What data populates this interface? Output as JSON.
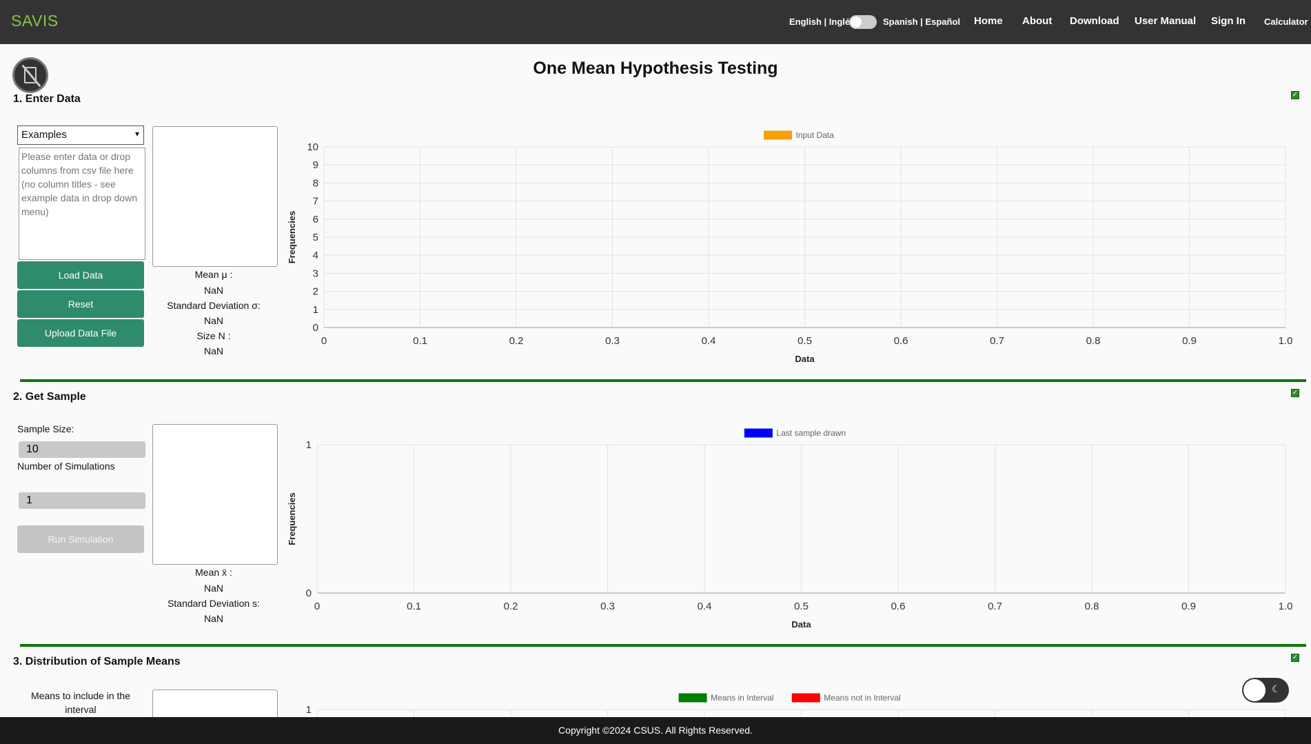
{
  "nav": {
    "brand": "SAVIS",
    "lang_en": "English | Inglés",
    "lang_es": "Spanish | Español",
    "links": [
      "Home",
      "About",
      "Download",
      "User Manual",
      "Sign In",
      "Calculator"
    ]
  },
  "page_title": "One Mean Hypothesis Testing",
  "section1": {
    "title": "1. Enter Data",
    "select_value": "Examples",
    "textarea_placeholder": "Please enter data or drop columns from csv file here (no column titles - see example data in drop down menu)",
    "buttons": [
      "Load Data",
      "Reset",
      "Upload Data File"
    ],
    "stats": {
      "mean_label": "Mean μ :",
      "mean_val": "NaN",
      "sd_label": "Standard Deviation σ:",
      "sd_val": "NaN",
      "size_label": "Size N :",
      "size_val": "NaN"
    }
  },
  "section2": {
    "title": "2. Get Sample",
    "sample_size_label": "Sample Size:",
    "sample_size_value": "10",
    "num_sims_label": "Number of Simulations",
    "num_sims_value": "1",
    "run_button": "Run Simulation",
    "stats": {
      "mean_label": "Mean x̄ :",
      "mean_val": "NaN",
      "sd_label": "Standard Deviation s:",
      "sd_val": "NaN"
    }
  },
  "section3": {
    "title": "3. Distribution of Sample Means",
    "means_label": "Means to include in the interval"
  },
  "footer": "Copyright ©2024 CSUS. All Rights Reserved.",
  "colors": {
    "nav_bg": "#333333",
    "brand": "#8ac34a",
    "button": "#2e8b6c",
    "divider": "#0d7a0d",
    "input_data": "#f5a10a",
    "last_sample": "#0000ff",
    "in_interval": "#008000",
    "not_in_interval": "#ff0000"
  },
  "chart_data": [
    {
      "type": "bar",
      "legend": [
        {
          "name": "Input Data",
          "color": "#f5a10a"
        }
      ],
      "xlabel": "Data",
      "ylabel": "Frequencies",
      "xticks": [
        "0",
        "0.1",
        "0.2",
        "0.3",
        "0.4",
        "0.5",
        "0.6",
        "0.7",
        "0.8",
        "0.9",
        "1.0"
      ],
      "yticks": [
        "0",
        "1",
        "2",
        "3",
        "4",
        "5",
        "6",
        "7",
        "8",
        "9",
        "10"
      ],
      "xlim": [
        0,
        1
      ],
      "ylim": [
        0,
        10
      ],
      "grid": true,
      "values": []
    },
    {
      "type": "bar",
      "legend": [
        {
          "name": "Last sample drawn",
          "color": "#0000ff"
        }
      ],
      "xlabel": "Data",
      "ylabel": "Frequencies",
      "xticks": [
        "0",
        "0.1",
        "0.2",
        "0.3",
        "0.4",
        "0.5",
        "0.6",
        "0.7",
        "0.8",
        "0.9",
        "1.0"
      ],
      "yticks": [
        "0",
        "1"
      ],
      "xlim": [
        0,
        1
      ],
      "ylim": [
        0,
        1
      ],
      "grid": true,
      "values": []
    },
    {
      "type": "bar",
      "legend": [
        {
          "name": "Means in Interval",
          "color": "#008000"
        },
        {
          "name": "Means not in Interval",
          "color": "#ff0000"
        }
      ],
      "yticks": [
        "1"
      ],
      "grid": true,
      "values": []
    }
  ]
}
